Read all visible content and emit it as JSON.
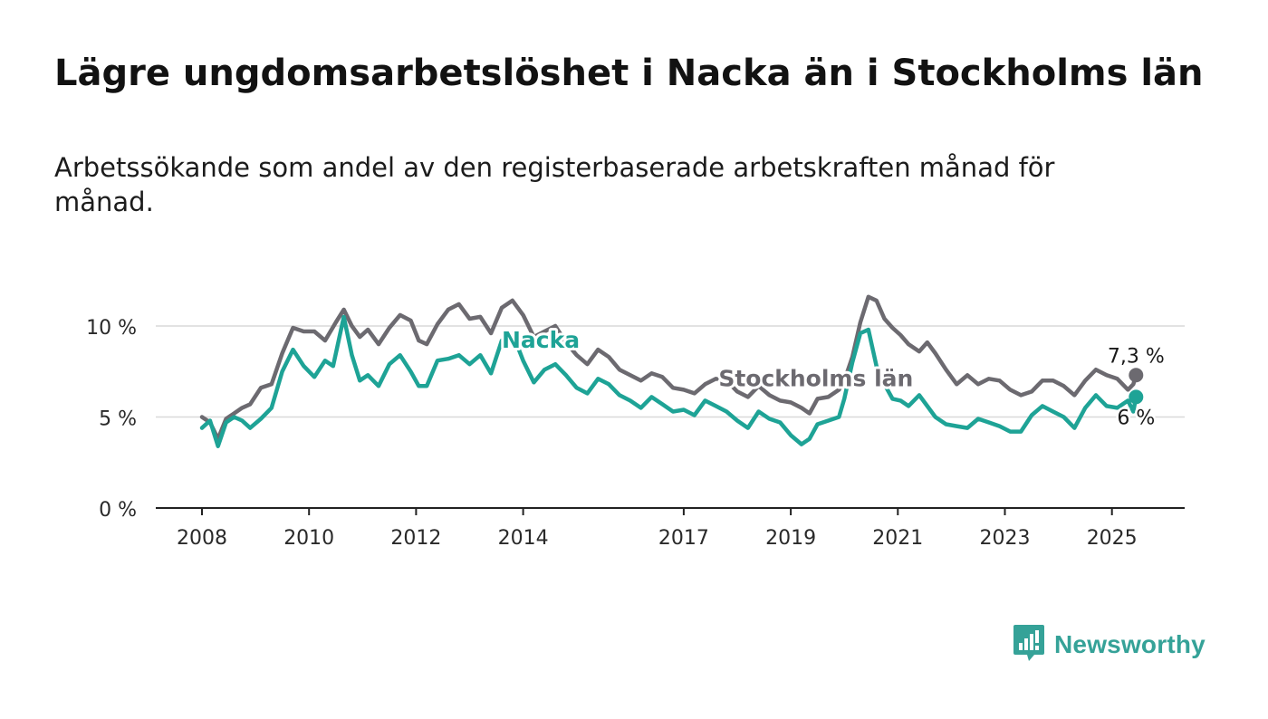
{
  "title": "Lägre ungdomsarbetslöshet i Nacka än i Stockholms län",
  "subtitle": "Arbetssökande som andel av den registerbaserade arbetskraften månad för månad.",
  "brand": {
    "name": "Newsworthy",
    "color": "#35a298",
    "icon": "newsworthy-logo-icon"
  },
  "chart_data": {
    "type": "line",
    "y_ticks": [
      "0 %",
      "5 %",
      "10 %"
    ],
    "y_tick_values": [
      0,
      5,
      10
    ],
    "x_ticks": [
      "2008",
      "2010",
      "2012",
      "2014",
      "2017",
      "2019",
      "2021",
      "2023",
      "2025"
    ],
    "x_tick_values": [
      2008,
      2010,
      2012,
      2014,
      2017,
      2019,
      2021,
      2023,
      2025
    ],
    "xlim": [
      2007.2,
      2026.25
    ],
    "ylim": [
      0,
      12
    ],
    "grid": true,
    "series": [
      {
        "name": "Stockholms län",
        "color": "#6c6a70",
        "end_label": "7,3 %",
        "points": [
          [
            2008.0,
            5.0
          ],
          [
            2008.15,
            4.7
          ],
          [
            2008.3,
            3.8
          ],
          [
            2008.45,
            4.9
          ],
          [
            2008.6,
            5.2
          ],
          [
            2008.75,
            5.5
          ],
          [
            2008.9,
            5.7
          ],
          [
            2009.1,
            6.6
          ],
          [
            2009.3,
            6.8
          ],
          [
            2009.5,
            8.5
          ],
          [
            2009.7,
            9.9
          ],
          [
            2009.9,
            9.7
          ],
          [
            2010.1,
            9.7
          ],
          [
            2010.3,
            9.2
          ],
          [
            2010.5,
            10.2
          ],
          [
            2010.65,
            10.9
          ],
          [
            2010.8,
            10.0
          ],
          [
            2010.95,
            9.4
          ],
          [
            2011.1,
            9.8
          ],
          [
            2011.3,
            9.0
          ],
          [
            2011.5,
            9.9
          ],
          [
            2011.7,
            10.6
          ],
          [
            2011.9,
            10.3
          ],
          [
            2012.05,
            9.2
          ],
          [
            2012.2,
            9.0
          ],
          [
            2012.4,
            10.1
          ],
          [
            2012.6,
            10.9
          ],
          [
            2012.8,
            11.2
          ],
          [
            2013.0,
            10.4
          ],
          [
            2013.2,
            10.5
          ],
          [
            2013.4,
            9.6
          ],
          [
            2013.6,
            11.0
          ],
          [
            2013.8,
            11.4
          ],
          [
            2014.0,
            10.6
          ],
          [
            2014.2,
            9.4
          ],
          [
            2014.4,
            9.7
          ],
          [
            2014.6,
            10.0
          ],
          [
            2014.8,
            9.1
          ],
          [
            2015.0,
            8.4
          ],
          [
            2015.2,
            7.9
          ],
          [
            2015.4,
            8.7
          ],
          [
            2015.6,
            8.3
          ],
          [
            2015.8,
            7.6
          ],
          [
            2016.0,
            7.3
          ],
          [
            2016.2,
            7.0
          ],
          [
            2016.4,
            7.4
          ],
          [
            2016.6,
            7.2
          ],
          [
            2016.8,
            6.6
          ],
          [
            2017.0,
            6.5
          ],
          [
            2017.2,
            6.3
          ],
          [
            2017.4,
            6.8
          ],
          [
            2017.6,
            7.1
          ],
          [
            2017.8,
            7.0
          ],
          [
            2018.0,
            6.4
          ],
          [
            2018.2,
            6.1
          ],
          [
            2018.4,
            6.7
          ],
          [
            2018.6,
            6.2
          ],
          [
            2018.8,
            5.9
          ],
          [
            2019.0,
            5.8
          ],
          [
            2019.2,
            5.5
          ],
          [
            2019.35,
            5.2
          ],
          [
            2019.5,
            6.0
          ],
          [
            2019.7,
            6.1
          ],
          [
            2019.9,
            6.5
          ],
          [
            2020.0,
            7.0
          ],
          [
            2020.15,
            8.3
          ],
          [
            2020.3,
            10.2
          ],
          [
            2020.45,
            11.6
          ],
          [
            2020.6,
            11.4
          ],
          [
            2020.75,
            10.4
          ],
          [
            2020.9,
            9.9
          ],
          [
            2021.05,
            9.5
          ],
          [
            2021.2,
            9.0
          ],
          [
            2021.4,
            8.6
          ],
          [
            2021.55,
            9.1
          ],
          [
            2021.7,
            8.5
          ],
          [
            2021.9,
            7.6
          ],
          [
            2022.1,
            6.8
          ],
          [
            2022.3,
            7.3
          ],
          [
            2022.5,
            6.8
          ],
          [
            2022.7,
            7.1
          ],
          [
            2022.9,
            7.0
          ],
          [
            2023.1,
            6.5
          ],
          [
            2023.3,
            6.2
          ],
          [
            2023.5,
            6.4
          ],
          [
            2023.7,
            7.0
          ],
          [
            2023.9,
            7.0
          ],
          [
            2024.1,
            6.7
          ],
          [
            2024.3,
            6.2
          ],
          [
            2024.5,
            7.0
          ],
          [
            2024.7,
            7.6
          ],
          [
            2024.9,
            7.3
          ],
          [
            2025.1,
            7.1
          ],
          [
            2025.3,
            6.5
          ],
          [
            2025.4,
            6.8
          ],
          [
            2025.45,
            7.3
          ]
        ]
      },
      {
        "name": "Nacka",
        "color": "#1ea396",
        "end_label": "6 %",
        "points": [
          [
            2008.0,
            4.4
          ],
          [
            2008.15,
            4.8
          ],
          [
            2008.3,
            3.4
          ],
          [
            2008.45,
            4.7
          ],
          [
            2008.6,
            5.0
          ],
          [
            2008.75,
            4.8
          ],
          [
            2008.9,
            4.4
          ],
          [
            2009.1,
            4.9
          ],
          [
            2009.3,
            5.5
          ],
          [
            2009.5,
            7.5
          ],
          [
            2009.7,
            8.7
          ],
          [
            2009.9,
            7.8
          ],
          [
            2010.1,
            7.2
          ],
          [
            2010.3,
            8.1
          ],
          [
            2010.45,
            7.8
          ],
          [
            2010.65,
            10.5
          ],
          [
            2010.8,
            8.4
          ],
          [
            2010.95,
            7.0
          ],
          [
            2011.1,
            7.3
          ],
          [
            2011.3,
            6.7
          ],
          [
            2011.5,
            7.9
          ],
          [
            2011.7,
            8.4
          ],
          [
            2011.9,
            7.5
          ],
          [
            2012.05,
            6.7
          ],
          [
            2012.2,
            6.7
          ],
          [
            2012.4,
            8.1
          ],
          [
            2012.6,
            8.2
          ],
          [
            2012.8,
            8.4
          ],
          [
            2013.0,
            7.9
          ],
          [
            2013.2,
            8.4
          ],
          [
            2013.4,
            7.4
          ],
          [
            2013.6,
            9.2
          ],
          [
            2013.8,
            9.6
          ],
          [
            2014.0,
            8.1
          ],
          [
            2014.2,
            6.9
          ],
          [
            2014.4,
            7.6
          ],
          [
            2014.6,
            7.9
          ],
          [
            2014.8,
            7.3
          ],
          [
            2015.0,
            6.6
          ],
          [
            2015.2,
            6.3
          ],
          [
            2015.4,
            7.1
          ],
          [
            2015.6,
            6.8
          ],
          [
            2015.8,
            6.2
          ],
          [
            2016.0,
            5.9
          ],
          [
            2016.2,
            5.5
          ],
          [
            2016.4,
            6.1
          ],
          [
            2016.6,
            5.7
          ],
          [
            2016.8,
            5.3
          ],
          [
            2017.0,
            5.4
          ],
          [
            2017.2,
            5.1
          ],
          [
            2017.4,
            5.9
          ],
          [
            2017.6,
            5.6
          ],
          [
            2017.8,
            5.3
          ],
          [
            2018.0,
            4.8
          ],
          [
            2018.2,
            4.4
          ],
          [
            2018.4,
            5.3
          ],
          [
            2018.6,
            4.9
          ],
          [
            2018.8,
            4.7
          ],
          [
            2019.0,
            4.0
          ],
          [
            2019.2,
            3.5
          ],
          [
            2019.35,
            3.8
          ],
          [
            2019.5,
            4.6
          ],
          [
            2019.7,
            4.8
          ],
          [
            2019.9,
            5.0
          ],
          [
            2020.0,
            6.0
          ],
          [
            2020.15,
            8.0
          ],
          [
            2020.3,
            9.6
          ],
          [
            2020.45,
            9.8
          ],
          [
            2020.6,
            7.8
          ],
          [
            2020.75,
            6.8
          ],
          [
            2020.9,
            6.0
          ],
          [
            2021.05,
            5.9
          ],
          [
            2021.2,
            5.6
          ],
          [
            2021.4,
            6.2
          ],
          [
            2021.55,
            5.6
          ],
          [
            2021.7,
            5.0
          ],
          [
            2021.9,
            4.6
          ],
          [
            2022.1,
            4.5
          ],
          [
            2022.3,
            4.4
          ],
          [
            2022.5,
            4.9
          ],
          [
            2022.7,
            4.7
          ],
          [
            2022.9,
            4.5
          ],
          [
            2023.1,
            4.2
          ],
          [
            2023.3,
            4.2
          ],
          [
            2023.5,
            5.1
          ],
          [
            2023.7,
            5.6
          ],
          [
            2023.9,
            5.3
          ],
          [
            2024.1,
            5.0
          ],
          [
            2024.3,
            4.4
          ],
          [
            2024.5,
            5.5
          ],
          [
            2024.7,
            6.2
          ],
          [
            2024.9,
            5.6
          ],
          [
            2025.1,
            5.5
          ],
          [
            2025.3,
            5.9
          ],
          [
            2025.4,
            5.3
          ],
          [
            2025.45,
            6.1
          ]
        ]
      }
    ],
    "annotations": [
      {
        "text": "Nacka",
        "series": "Nacka",
        "x": 2013.6,
        "y": 8.8
      },
      {
        "text": "Stockholms län",
        "series": "Stockholms län",
        "x": 2017.65,
        "y": 6.7
      }
    ]
  }
}
